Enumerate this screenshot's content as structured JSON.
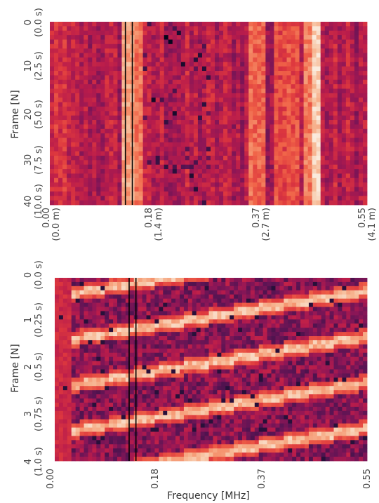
{
  "chart_data": [
    {
      "type": "heatmap",
      "panel": "top",
      "ylabel": "Frame [N]",
      "xlabel": "",
      "y_ticks": [
        {
          "value": 0,
          "label": "0",
          "sublabel": "(0.0 s)"
        },
        {
          "value": 10,
          "label": "10",
          "sublabel": "(2.5 s)"
        },
        {
          "value": 20,
          "label": "20",
          "sublabel": "(5.0 s)"
        },
        {
          "value": 30,
          "label": "30",
          "sublabel": "(7.5 s)"
        },
        {
          "value": 40,
          "label": "40",
          "sublabel": "(10.0 s)"
        }
      ],
      "x_ticks": [
        {
          "value": 0.0,
          "label": "0.00",
          "sublabel": "(0.0 m)"
        },
        {
          "value": 0.18,
          "label": "0.18",
          "sublabel": "(1.4 m)"
        },
        {
          "value": 0.37,
          "label": "0.37",
          "sublabel": "(2.7 m)"
        },
        {
          "value": 0.55,
          "label": "0.55",
          "sublabel": "(4.1 m)"
        }
      ],
      "xlim": [
        0,
        0.55
      ],
      "ylim": [
        0,
        40
      ],
      "columns": 75,
      "rows": 41,
      "colormap": "rocket",
      "marker_lines": [
        0.131,
        0.143
      ],
      "pattern": "vertical-stripes"
    },
    {
      "type": "heatmap",
      "panel": "bottom",
      "ylabel": "Frame [N]",
      "xlabel": "Frequency [MHz]",
      "y_ticks": [
        {
          "value": 0,
          "label": "0",
          "sublabel": "(0.0 s)"
        },
        {
          "value": 1,
          "label": "1",
          "sublabel": "(0.25 s)"
        },
        {
          "value": 2,
          "label": "2",
          "sublabel": "(0.5 s)"
        },
        {
          "value": 3,
          "label": "3",
          "sublabel": "(0.75 s)"
        },
        {
          "value": 4,
          "label": "4",
          "sublabel": "(1.0 s)"
        }
      ],
      "x_ticks": [
        {
          "value": 0.0,
          "label": "0.00"
        },
        {
          "value": 0.18,
          "label": "0.18"
        },
        {
          "value": 0.37,
          "label": "0.37"
        },
        {
          "value": 0.55,
          "label": "0.55"
        }
      ],
      "xlim": [
        0,
        0.55
      ],
      "ylim": [
        0,
        4
      ],
      "columns": 75,
      "rows": 44,
      "colormap": "rocket",
      "marker_lines": [
        0.131,
        0.143
      ],
      "pattern": "diagonal-chirps"
    }
  ]
}
